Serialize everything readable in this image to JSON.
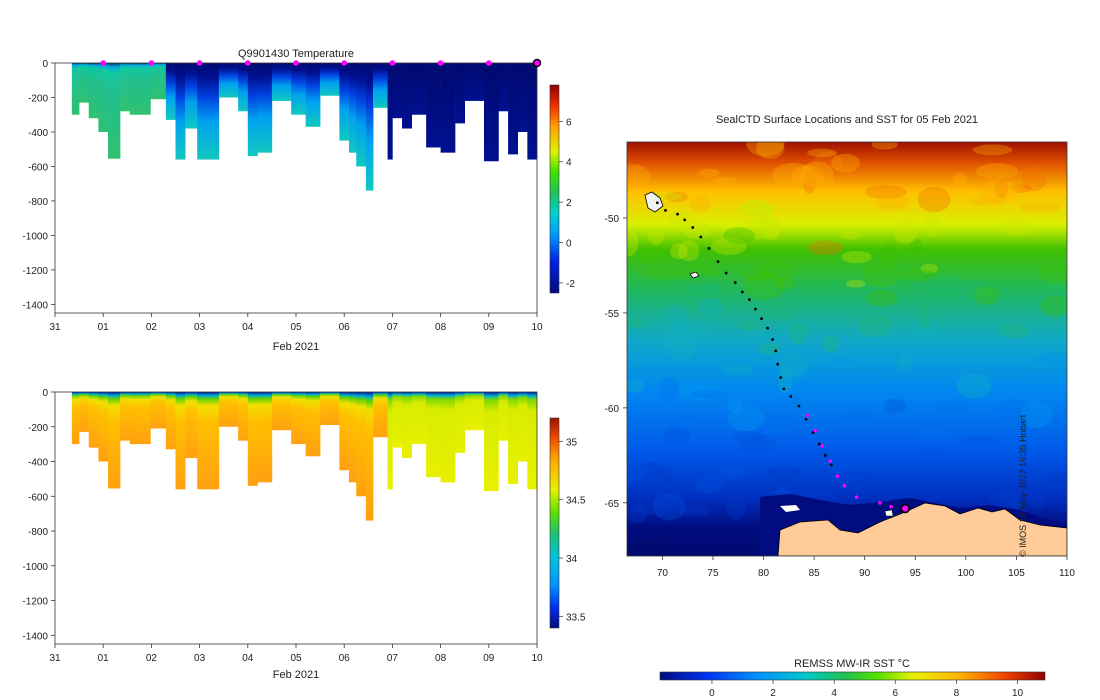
{
  "chart_data": [
    {
      "type": "heatmap",
      "title": "Q9901430  Temperature",
      "xlabel": "Feb 2021",
      "ylabel": "",
      "x_ticks": [
        "31",
        "01",
        "02",
        "03",
        "04",
        "05",
        "06",
        "07",
        "08",
        "09",
        "10"
      ],
      "y_ticks": [
        0,
        -200,
        -400,
        -600,
        -800,
        -1000,
        -1200,
        -1400
      ],
      "ylim": [
        -1450,
        0
      ],
      "colorbar": {
        "ticks": [
          6,
          4,
          2,
          0,
          -2
        ],
        "range": [
          -2.5,
          7.8
        ]
      },
      "surface_markers_day": [
        1,
        2,
        3,
        4,
        5,
        6,
        7,
        8,
        9
      ],
      "last_position_day": 10,
      "profile_depth_segments": [
        {
          "day_start": 0.35,
          "day_end": 0.5,
          "max_depth": 300
        },
        {
          "day_start": 0.5,
          "day_end": 0.7,
          "max_depth": 230
        },
        {
          "day_start": 0.7,
          "day_end": 0.9,
          "max_depth": 320
        },
        {
          "day_start": 0.9,
          "day_end": 1.1,
          "max_depth": 400
        },
        {
          "day_start": 1.1,
          "day_end": 1.35,
          "max_depth": 555
        },
        {
          "day_start": 1.35,
          "day_end": 1.55,
          "max_depth": 280
        },
        {
          "day_start": 1.55,
          "day_end": 1.98,
          "max_depth": 300
        },
        {
          "day_start": 1.98,
          "day_end": 2.3,
          "max_depth": 210
        },
        {
          "day_start": 2.3,
          "day_end": 2.5,
          "max_depth": 330
        },
        {
          "day_start": 2.5,
          "day_end": 2.7,
          "max_depth": 560
        },
        {
          "day_start": 2.7,
          "day_end": 2.95,
          "max_depth": 380
        },
        {
          "day_start": 2.95,
          "day_end": 3.1,
          "max_depth": 560
        },
        {
          "day_start": 3.1,
          "day_end": 3.4,
          "max_depth": 560
        },
        {
          "day_start": 3.4,
          "day_end": 3.8,
          "max_depth": 200
        },
        {
          "day_start": 3.8,
          "day_end": 4.0,
          "max_depth": 280
        },
        {
          "day_start": 4.0,
          "day_end": 4.2,
          "max_depth": 540
        },
        {
          "day_start": 4.2,
          "day_end": 4.5,
          "max_depth": 520
        },
        {
          "day_start": 4.5,
          "day_end": 4.9,
          "max_depth": 220
        },
        {
          "day_start": 4.9,
          "day_end": 5.2,
          "max_depth": 300
        },
        {
          "day_start": 5.2,
          "day_end": 5.5,
          "max_depth": 370
        },
        {
          "day_start": 5.5,
          "day_end": 5.9,
          "max_depth": 190
        },
        {
          "day_start": 5.9,
          "day_end": 6.1,
          "max_depth": 450
        },
        {
          "day_start": 6.1,
          "day_end": 6.25,
          "max_depth": 520
        },
        {
          "day_start": 6.25,
          "day_end": 6.45,
          "max_depth": 600
        },
        {
          "day_start": 6.45,
          "day_end": 6.6,
          "max_depth": 740
        },
        {
          "day_start": 6.6,
          "day_end": 6.9,
          "max_depth": 260
        },
        {
          "day_start": 6.9,
          "day_end": 7.0,
          "max_depth": 560
        },
        {
          "day_start": 7.0,
          "day_end": 7.2,
          "max_depth": 320
        },
        {
          "day_start": 7.2,
          "day_end": 7.4,
          "max_depth": 380
        },
        {
          "day_start": 7.4,
          "day_end": 7.7,
          "max_depth": 300
        },
        {
          "day_start": 7.7,
          "day_end": 8.0,
          "max_depth": 490
        },
        {
          "day_start": 8.0,
          "day_end": 8.3,
          "max_depth": 520
        },
        {
          "day_start": 8.3,
          "day_end": 8.5,
          "max_depth": 350
        },
        {
          "day_start": 8.5,
          "day_end": 8.9,
          "max_depth": 220
        },
        {
          "day_start": 8.9,
          "day_end": 9.2,
          "max_depth": 570
        },
        {
          "day_start": 9.2,
          "day_end": 9.4,
          "max_depth": 280
        },
        {
          "day_start": 9.4,
          "day_end": 9.6,
          "max_depth": 530
        },
        {
          "day_start": 9.6,
          "day_end": 9.8,
          "max_depth": 400
        },
        {
          "day_start": 9.8,
          "day_end": 10.0,
          "max_depth": 560
        }
      ]
    },
    {
      "type": "heatmap",
      "title": "",
      "xlabel": "Feb 2021",
      "ylabel": "",
      "x_ticks": [
        "31",
        "01",
        "02",
        "03",
        "04",
        "05",
        "06",
        "07",
        "08",
        "09",
        "10"
      ],
      "y_ticks": [
        0,
        -200,
        -400,
        -600,
        -800,
        -1000,
        -1200,
        -1400
      ],
      "ylim": [
        -1450,
        0
      ],
      "colorbar": {
        "ticks": [
          35,
          34.5,
          34,
          33.5
        ],
        "range": [
          33.4,
          35.2
        ]
      }
    },
    {
      "type": "heatmap",
      "title": "SealCTD Surface Locations and SST for 05 Feb 2021",
      "xlabel": "",
      "ylabel": "",
      "x_ticks": [
        70,
        75,
        80,
        85,
        90,
        95,
        100,
        105,
        110
      ],
      "y_ticks": [
        -50,
        -55,
        -60,
        -65
      ],
      "xlim": [
        66.5,
        110
      ],
      "ylim": [
        -67.8,
        -46
      ],
      "colorbar": {
        "label": "REMSS MW-IR SST °C",
        "ticks": [
          0,
          2,
          4,
          6,
          8,
          10
        ],
        "range": [
          -1.7,
          10.9
        ]
      },
      "credit": "© IMOS 18-May-2022 16:35 Hobart",
      "track_points": [
        [
          69.5,
          -49.2
        ],
        [
          70.3,
          -49.6
        ],
        [
          71.5,
          -49.8
        ],
        [
          72.2,
          -50.1
        ],
        [
          73.0,
          -50.5
        ],
        [
          73.8,
          -51.0
        ],
        [
          74.6,
          -51.6
        ],
        [
          75.5,
          -52.3
        ],
        [
          76.3,
          -52.9
        ],
        [
          77.2,
          -53.4
        ],
        [
          77.9,
          -53.9
        ],
        [
          78.6,
          -54.3
        ],
        [
          79.2,
          -54.8
        ],
        [
          79.8,
          -55.3
        ],
        [
          80.4,
          -55.8
        ],
        [
          80.9,
          -56.4
        ],
        [
          81.2,
          -57.0
        ],
        [
          81.4,
          -57.7
        ],
        [
          81.7,
          -58.4
        ],
        [
          82.0,
          -59.0
        ],
        [
          82.7,
          -59.4
        ],
        [
          83.5,
          -59.9
        ],
        [
          84.2,
          -60.6
        ],
        [
          84.9,
          -61.3
        ],
        [
          85.5,
          -61.9
        ],
        [
          86.1,
          -62.5
        ],
        [
          86.7,
          -63.0
        ]
      ],
      "recent_points": [
        [
          84.4,
          -60.4
        ],
        [
          85.1,
          -61.2
        ],
        [
          85.8,
          -62.0
        ],
        [
          86.6,
          -62.8
        ],
        [
          87.3,
          -63.6
        ],
        [
          88.0,
          -64.1
        ],
        [
          89.2,
          -64.7
        ],
        [
          91.5,
          -65.0
        ],
        [
          92.6,
          -65.2
        ]
      ],
      "last_position": [
        94.0,
        -65.3
      ]
    }
  ]
}
